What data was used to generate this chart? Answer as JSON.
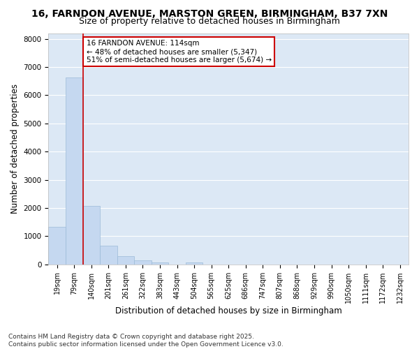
{
  "title_line1": "16, FARNDON AVENUE, MARSTON GREEN, BIRMINGHAM, B37 7XN",
  "title_line2": "Size of property relative to detached houses in Birmingham",
  "xlabel": "Distribution of detached houses by size in Birmingham",
  "ylabel": "Number of detached properties",
  "categories": [
    "19sqm",
    "79sqm",
    "140sqm",
    "201sqm",
    "261sqm",
    "322sqm",
    "383sqm",
    "443sqm",
    "504sqm",
    "565sqm",
    "625sqm",
    "686sqm",
    "747sqm",
    "807sqm",
    "868sqm",
    "929sqm",
    "990sqm",
    "1050sqm",
    "1111sqm",
    "1172sqm",
    "1232sqm"
  ],
  "values": [
    1320,
    6620,
    2080,
    670,
    290,
    130,
    70,
    0,
    60,
    0,
    0,
    0,
    0,
    0,
    0,
    0,
    0,
    0,
    0,
    0,
    0
  ],
  "bar_color": "#c5d8f0",
  "bar_edgecolor": "#9bbbd8",
  "vline_x": 1.5,
  "vline_color": "#cc0000",
  "annotation_text": "16 FARNDON AVENUE: 114sqm\n← 48% of detached houses are smaller (5,347)\n51% of semi-detached houses are larger (5,674) →",
  "annotation_box_edgecolor": "#cc0000",
  "annotation_box_facecolor": "#ffffff",
  "ylim": [
    0,
    8200
  ],
  "yticks": [
    0,
    1000,
    2000,
    3000,
    4000,
    5000,
    6000,
    7000,
    8000
  ],
  "background_color": "#dce8f5",
  "grid_color": "#ffffff",
  "footer_text": "Contains HM Land Registry data © Crown copyright and database right 2025.\nContains public sector information licensed under the Open Government Licence v3.0.",
  "title_fontsize": 10,
  "subtitle_fontsize": 9,
  "axis_label_fontsize": 8.5,
  "tick_fontsize": 7,
  "annotation_fontsize": 7.5,
  "footer_fontsize": 6.5
}
